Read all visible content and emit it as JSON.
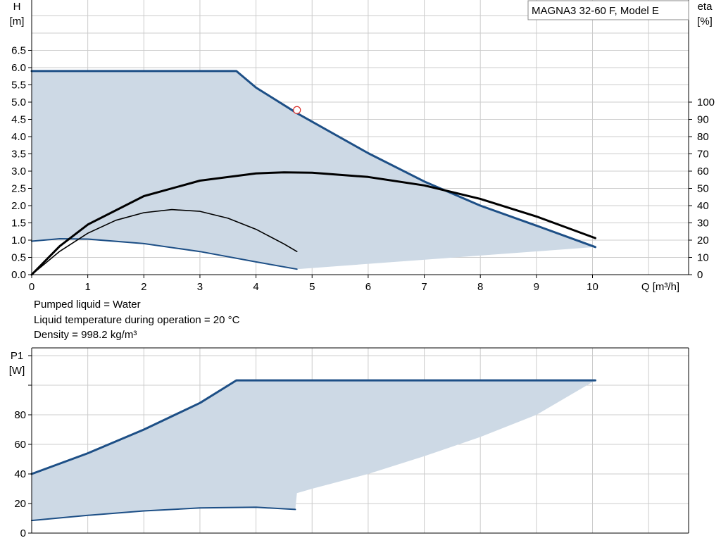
{
  "colors": {
    "area_fill": "#cdd9e5",
    "curve_blue": "#1d4f86",
    "curve_black": "#000000",
    "grid": "#cccccc",
    "frame": "#000000",
    "duty_point": "#d9302c"
  },
  "info": {
    "line1": "Pumped liquid = Water",
    "line2": "Liquid temperature during operation = 20 °C",
    "line3": "Density = 998.2 kg/m³"
  },
  "chart_data": [
    {
      "type": "line",
      "title": "MAGNA3 32-60 F, Model E",
      "xlabel": "Q [m³/h]",
      "ylabel_line1": "H",
      "ylabel_line2": "[m]",
      "y2label_line1": "eta",
      "y2label_line2": "[%]",
      "xlim": [
        0,
        11.7
      ],
      "ylim": [
        0,
        8.0
      ],
      "y2lim": [
        0,
        163.3
      ],
      "grid": true,
      "x_ticks": [
        0,
        1,
        2,
        3,
        4,
        5,
        6,
        7,
        8,
        9,
        10
      ],
      "y_ticks": [
        "0.0",
        "0.5",
        "1.0",
        "1.5",
        "2.0",
        "2.5",
        "3.0",
        "3.5",
        "4.0",
        "4.5",
        "5.0",
        "5.5",
        "6.0",
        "6.5"
      ],
      "y2_ticks": [
        "0",
        "10",
        "20",
        "30",
        "40",
        "50",
        "60",
        "70",
        "80",
        "90",
        "100"
      ],
      "operating_area": {
        "upper": [
          [
            0,
            5.9
          ],
          [
            3.65,
            5.9
          ],
          [
            4.0,
            5.42
          ],
          [
            4.73,
            4.68
          ],
          [
            6.0,
            3.52
          ],
          [
            7.0,
            2.7
          ],
          [
            8.0,
            2.0
          ],
          [
            9.0,
            1.42
          ],
          [
            10.05,
            0.8
          ]
        ],
        "lower": [
          [
            10.05,
            0.8
          ],
          [
            4.73,
            0.16
          ],
          [
            4.0,
            0.37
          ],
          [
            3.0,
            0.67
          ],
          [
            2.0,
            0.9
          ],
          [
            1.0,
            1.03
          ],
          [
            0.5,
            1.04
          ],
          [
            0,
            0.97
          ]
        ]
      },
      "series": [
        {
          "role": "max_head_curve",
          "axis": "H",
          "color": "curve_blue",
          "width": 3,
          "x": [
            0,
            3.65,
            4.0,
            4.73,
            6.0,
            7.0,
            8.0,
            9.0,
            10.05
          ],
          "y": [
            5.9,
            5.9,
            5.42,
            4.68,
            3.52,
            2.7,
            2.0,
            1.42,
            0.8
          ]
        },
        {
          "role": "min_head_curve",
          "axis": "H",
          "color": "curve_blue",
          "width": 2,
          "x": [
            0,
            0.5,
            1.0,
            2.0,
            3.0,
            4.0,
            4.73
          ],
          "y": [
            0.97,
            1.04,
            1.03,
            0.9,
            0.67,
            0.37,
            0.16
          ]
        },
        {
          "role": "max_efficiency_curve",
          "axis": "eta",
          "color": "curve_black",
          "width": 3,
          "x": [
            0,
            0.5,
            1.0,
            2.0,
            3.0,
            4.0,
            4.5,
            5.0,
            6.0,
            7.0,
            8.0,
            9.0,
            10.05
          ],
          "y": [
            0,
            16.5,
            29.0,
            45.5,
            54.5,
            58.7,
            59.3,
            59.1,
            56.6,
            51.7,
            43.9,
            33.7,
            21.2
          ]
        },
        {
          "role": "min_efficiency_curve",
          "axis": "eta",
          "color": "curve_black",
          "width": 1.6,
          "x": [
            0,
            0.5,
            1.0,
            1.5,
            2.0,
            2.5,
            3.0,
            3.5,
            4.0,
            4.5,
            4.73
          ],
          "y": [
            0,
            13.5,
            24.0,
            31.5,
            35.9,
            37.7,
            36.7,
            32.7,
            26.3,
            17.8,
            13.4
          ]
        }
      ],
      "duty_point": {
        "x": 4.73,
        "y": 4.77
      }
    },
    {
      "type": "line",
      "title": "",
      "xlabel": "",
      "ylabel_line1": "P1",
      "ylabel_line2": "[W]",
      "xlim": [
        0,
        11.7
      ],
      "ylim": [
        0,
        120.0
      ],
      "grid": true,
      "y_ticks": [
        "0",
        "20",
        "40",
        "60",
        "80"
      ],
      "operating_area": {
        "upper": [
          [
            0,
            40
          ],
          [
            1,
            54
          ],
          [
            2,
            70
          ],
          [
            3,
            88
          ],
          [
            3.65,
            103.3
          ],
          [
            10.05,
            103.3
          ]
        ],
        "lower": [
          [
            10.05,
            103.3
          ],
          [
            9,
            80
          ],
          [
            8,
            65
          ],
          [
            7,
            52
          ],
          [
            6,
            40
          ],
          [
            5,
            30
          ],
          [
            4.73,
            27
          ],
          [
            4.7,
            16
          ],
          [
            4,
            17.5
          ],
          [
            3,
            17
          ],
          [
            2,
            15
          ],
          [
            1,
            12
          ],
          [
            0,
            8.5
          ]
        ]
      },
      "series": [
        {
          "role": "max_power_curve",
          "color": "curve_blue",
          "width": 3,
          "x": [
            0,
            1,
            2,
            3,
            3.65,
            10.05
          ],
          "y": [
            40,
            54,
            70,
            88,
            103.3,
            103.3
          ]
        },
        {
          "role": "min_power_curve",
          "color": "curve_blue",
          "width": 2,
          "x": [
            0,
            1,
            2,
            3,
            4,
            4.7
          ],
          "y": [
            8.5,
            12,
            15,
            17,
            17.5,
            16
          ]
        }
      ]
    }
  ]
}
